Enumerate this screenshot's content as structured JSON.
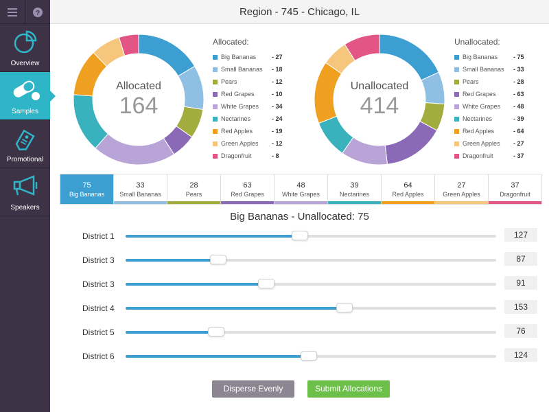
{
  "header": {
    "title": "Region - 745 - Chicago, IL"
  },
  "sidebar": {
    "top_icons": [
      "menu-icon",
      "help-icon"
    ],
    "items": [
      {
        "label": "Overview",
        "icon": "pie-chart-icon",
        "active": false
      },
      {
        "label": "Samples",
        "icon": "pill-icon",
        "active": true
      },
      {
        "label": "Promotional",
        "icon": "tag-icon",
        "active": false
      },
      {
        "label": "Speakers",
        "icon": "megaphone-icon",
        "active": false
      }
    ]
  },
  "colors": {
    "Big Bananas": "#3d9fd1",
    "Small Bananas": "#8fbfe3",
    "Pears": "#a3ad3f",
    "Red Grapes": "#8a6ab6",
    "White Grapes": "#b9a4d8",
    "Nectarines": "#39b2bd",
    "Red Apples": "#f0a021",
    "Green Apples": "#f5c67c",
    "Dragonfruit": "#e25584"
  },
  "allocated": {
    "title": "Allocated",
    "total": "164",
    "legend_title": "Allocated:",
    "items": [
      {
        "name": "Big Bananas",
        "value": 27,
        "value_label": "- 27"
      },
      {
        "name": "Small Bananas",
        "value": 18,
        "value_label": "- 18"
      },
      {
        "name": "Pears",
        "value": 12,
        "value_label": "- 12"
      },
      {
        "name": "Red Grapes",
        "value": 10,
        "value_label": "- 10"
      },
      {
        "name": "White Grapes",
        "value": 34,
        "value_label": "- 34"
      },
      {
        "name": "Nectarines",
        "value": 24,
        "value_label": "- 24"
      },
      {
        "name": "Red Apples",
        "value": 19,
        "value_label": "- 19"
      },
      {
        "name": "Green Apples",
        "value": 12,
        "value_label": "- 12"
      },
      {
        "name": "Dragonfruit",
        "value": 8,
        "value_label": "- 8"
      }
    ]
  },
  "unallocated": {
    "title": "Unallocated",
    "total": "414",
    "legend_title": "Unallocated:",
    "items": [
      {
        "name": "Big Bananas",
        "value": 75,
        "value_label": "- 75"
      },
      {
        "name": "Small Bananas",
        "value": 33,
        "value_label": "- 33"
      },
      {
        "name": "Pears",
        "value": 28,
        "value_label": "- 28"
      },
      {
        "name": "Red Grapes",
        "value": 63,
        "value_label": "- 63"
      },
      {
        "name": "White Grapes",
        "value": 48,
        "value_label": "- 48"
      },
      {
        "name": "Nectarines",
        "value": 39,
        "value_label": "- 39"
      },
      {
        "name": "Red Apples",
        "value": 64,
        "value_label": "- 64"
      },
      {
        "name": "Green Apples",
        "value": 27,
        "value_label": "- 27"
      },
      {
        "name": "Dragonfruit",
        "value": 37,
        "value_label": "- 37"
      }
    ]
  },
  "tabs": [
    {
      "count": "75",
      "name": "Big Bananas",
      "active": true
    },
    {
      "count": "33",
      "name": "Small Bananas",
      "active": false
    },
    {
      "count": "28",
      "name": "Pears",
      "active": false
    },
    {
      "count": "63",
      "name": "Red Grapes",
      "active": false
    },
    {
      "count": "48",
      "name": "White Grapes",
      "active": false
    },
    {
      "count": "39",
      "name": "Nectarines",
      "active": false
    },
    {
      "count": "64",
      "name": "Red Apples",
      "active": false
    },
    {
      "count": "27",
      "name": "Green Apples",
      "active": false
    },
    {
      "count": "37",
      "name": "Dragonfruit",
      "active": false
    }
  ],
  "section_title": "Big Bananas - Unallocated: 75",
  "districts": [
    {
      "label": "District 1",
      "value": "127",
      "fill_fraction": 0.47
    },
    {
      "label": "District 3",
      "value": "87",
      "fill_fraction": 0.25
    },
    {
      "label": "District 3",
      "value": "91",
      "fill_fraction": 0.38
    },
    {
      "label": "District 4",
      "value": "153",
      "fill_fraction": 0.59
    },
    {
      "label": "District 5",
      "value": "76",
      "fill_fraction": 0.245
    },
    {
      "label": "District 6",
      "value": "124",
      "fill_fraction": 0.495
    }
  ],
  "buttons": {
    "disperse": "Disperse Evenly",
    "submit": "Submit Allocations"
  }
}
